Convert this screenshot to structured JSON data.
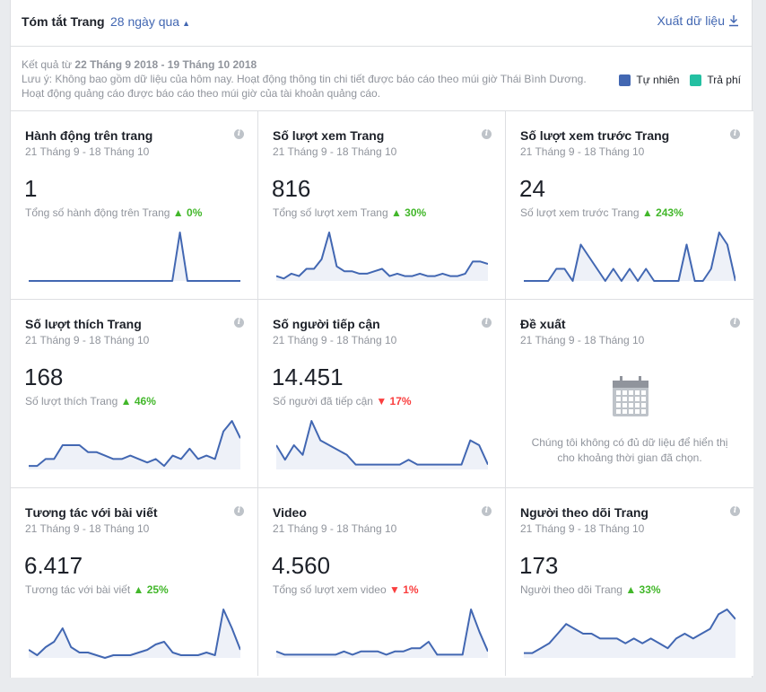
{
  "header": {
    "title": "Tóm tắt Trang",
    "period": "28 ngày qua",
    "export": "Xuất dữ liệu"
  },
  "note": {
    "range_prefix": "Kết quả từ ",
    "range": "22 Tháng 9 2018 - 19 Tháng 10 2018",
    "line2": "Lưu ý: Không bao gồm dữ liệu của hôm nay. Hoạt động thông tin chi tiết được báo cáo theo múi giờ Thái Bình Dương.",
    "line3": "Hoạt động quảng cáo được báo cáo theo múi giờ của tài khoản quảng cáo."
  },
  "legend": {
    "organic": "Tự nhiên",
    "paid": "Trả phí",
    "organic_color": "#4267b2",
    "paid_color": "#24c0a2"
  },
  "cards": [
    {
      "title": "Hành động trên trang",
      "date": "21 Tháng 9 - 18 Tháng 10",
      "value": "1",
      "label": "Tổng số hành động trên Trang",
      "trend": "up",
      "change": "0%",
      "series": [
        0,
        0,
        0,
        0,
        0,
        0,
        0,
        0,
        0,
        0,
        0,
        0,
        0,
        0,
        0,
        0,
        0,
        0,
        0,
        0,
        1,
        0,
        0,
        0,
        0,
        0,
        0,
        0,
        0
      ]
    },
    {
      "title": "Số lượt xem Trang",
      "date": "21 Tháng 9 - 18 Tháng 10",
      "value": "816",
      "label": "Tổng số lượt xem Trang",
      "trend": "up",
      "change": "30%",
      "series": [
        2,
        1,
        3,
        2,
        5,
        5,
        9,
        20,
        6,
        4,
        4,
        3,
        3,
        4,
        5,
        2,
        3,
        2,
        2,
        3,
        2,
        2,
        3,
        2,
        2,
        3,
        8,
        8,
        7
      ]
    },
    {
      "title": "Số lượt xem trước Trang",
      "date": "21 Tháng 9 - 18 Tháng 10",
      "value": "24",
      "label": "Số lượt xem trước Trang",
      "trend": "up",
      "change": "243%",
      "series": [
        0,
        0,
        0,
        0,
        1,
        1,
        0,
        3,
        2,
        1,
        0,
        1,
        0,
        1,
        0,
        1,
        0,
        0,
        0,
        0,
        3,
        0,
        0,
        1,
        4,
        3,
        0
      ]
    },
    {
      "title": "Số lượt thích Trang",
      "date": "21 Tháng 9 - 18 Tháng 10",
      "value": "168",
      "label": "Số lượt thích Trang",
      "trend": "up",
      "change": "46%",
      "series": [
        1,
        1,
        3,
        3,
        7,
        7,
        7,
        5,
        5,
        4,
        3,
        3,
        4,
        3,
        2,
        3,
        1,
        4,
        3,
        6,
        3,
        4,
        3,
        11,
        14,
        9
      ]
    },
    {
      "title": "Số người tiếp cận",
      "date": "21 Tháng 9 - 18 Tháng 10",
      "value": "14.451",
      "label": "Số người đã tiếp cận",
      "trend": "down",
      "change": "17%",
      "series": [
        5,
        2,
        5,
        3,
        10,
        6,
        5,
        4,
        3,
        1,
        1,
        1,
        1,
        1,
        1,
        2,
        1,
        1,
        1,
        1,
        1,
        1,
        6,
        5,
        1
      ]
    },
    {
      "title": "Đề xuất",
      "date": "21 Tháng 9 - 18 Tháng 10",
      "empty": "Chúng tôi không có đủ dữ liệu để hiển thị cho khoảng thời gian đã chọn."
    },
    {
      "title": "Tương tác với bài viết",
      "date": "21 Tháng 9 - 18 Tháng 10",
      "value": "6.417",
      "label": "Tương tác với bài viết",
      "trend": "up",
      "change": "25%",
      "series": [
        3,
        1,
        4,
        6,
        11,
        4,
        2,
        2,
        1,
        0,
        1,
        1,
        1,
        2,
        3,
        5,
        6,
        2,
        1,
        1,
        1,
        2,
        1,
        18,
        11,
        3
      ]
    },
    {
      "title": "Video",
      "date": "21 Tháng 9 - 18 Tháng 10",
      "value": "4.560",
      "label": "Tổng số lượt xem video",
      "trend": "down",
      "change": "1%",
      "series": [
        2,
        1,
        1,
        1,
        1,
        1,
        1,
        1,
        2,
        1,
        2,
        2,
        2,
        1,
        2,
        2,
        3,
        3,
        5,
        1,
        1,
        1,
        1,
        15,
        8,
        2
      ]
    },
    {
      "title": "Người theo dõi Trang",
      "date": "21 Tháng 9 - 18 Tháng 10",
      "value": "173",
      "label": "Người theo dõi Trang",
      "trend": "up",
      "change": "33%",
      "series": [
        1,
        1,
        2,
        3,
        5,
        7,
        6,
        5,
        5,
        4,
        4,
        4,
        3,
        4,
        3,
        4,
        3,
        2,
        4,
        5,
        4,
        5,
        6,
        9,
        10,
        8
      ]
    }
  ]
}
